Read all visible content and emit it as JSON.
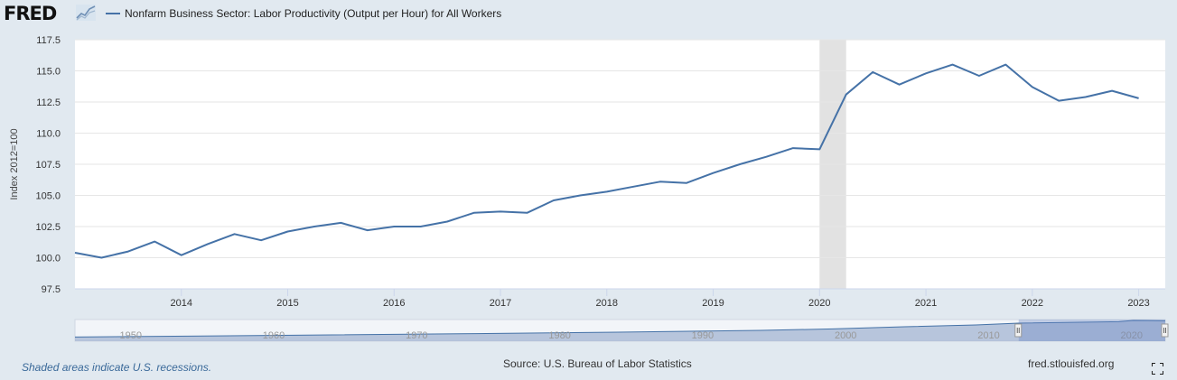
{
  "header": {
    "logo_text": "FRED",
    "logo_icon": "chart-trend-icon",
    "series_title": "Nonfarm Business Sector: Labor Productivity (Output per Hour) for All Workers"
  },
  "footer": {
    "recession_note": "Shaded areas indicate U.S. recessions.",
    "source": "Source: U.S. Bureau of Labor Statistics",
    "site": "fred.stlouisfed.org"
  },
  "colors": {
    "series": "#4572a7",
    "background": "#e1e9f0",
    "plot": "#ffffff",
    "recession": "#e2e2e2",
    "navigator": "#a7b9d4"
  },
  "chart_data": {
    "type": "line",
    "ylabel": "Index 2012=100",
    "ylim": [
      97.5,
      117.5
    ],
    "xlim": [
      2013.0,
      2023.25
    ],
    "yticks": [
      "97.5",
      "100.0",
      "102.5",
      "105.0",
      "107.5",
      "110.0",
      "112.5",
      "115.0",
      "117.5"
    ],
    "xticks": [
      "2014",
      "2015",
      "2016",
      "2017",
      "2018",
      "2019",
      "2020",
      "2021",
      "2022",
      "2023"
    ],
    "grid": true,
    "legend": "top-left",
    "recessions": [
      {
        "start": 2020.0,
        "end": 2020.25
      }
    ],
    "series": [
      {
        "name": "Nonfarm Business Sector: Labor Productivity (Output per Hour) for All Workers",
        "x": [
          2013.0,
          2013.25,
          2013.5,
          2013.75,
          2014.0,
          2014.25,
          2014.5,
          2014.75,
          2015.0,
          2015.25,
          2015.5,
          2015.75,
          2016.0,
          2016.25,
          2016.5,
          2016.75,
          2017.0,
          2017.25,
          2017.5,
          2017.75,
          2018.0,
          2018.25,
          2018.5,
          2018.75,
          2019.0,
          2019.25,
          2019.5,
          2019.75,
          2020.0,
          2020.25,
          2020.5,
          2020.75,
          2021.0,
          2021.25,
          2021.5,
          2021.75,
          2022.0,
          2022.25,
          2022.5,
          2022.75,
          2023.0
        ],
        "values": [
          100.4,
          100.0,
          100.5,
          101.3,
          100.2,
          101.1,
          101.9,
          101.4,
          102.1,
          102.5,
          102.8,
          102.2,
          102.5,
          102.5,
          102.9,
          103.6,
          103.7,
          103.6,
          104.6,
          105.0,
          105.3,
          105.7,
          106.1,
          106.0,
          106.8,
          107.5,
          108.1,
          108.8,
          108.7,
          113.1,
          114.9,
          113.9,
          114.8,
          115.5,
          114.6,
          115.5,
          113.7,
          112.6,
          112.9,
          113.4,
          112.8
        ]
      }
    ]
  },
  "navigator": {
    "labels": [
      "1950",
      "1960",
      "1970",
      "1980",
      "1990",
      "2000",
      "2010",
      "2020"
    ],
    "label_years": [
      1950,
      1960,
      1970,
      1980,
      1990,
      2000,
      2010,
      2020
    ],
    "range": [
      1947.0,
      2023.25
    ],
    "selected": [
      2013.0,
      2023.25
    ],
    "values": [
      {
        "x": 1947,
        "y": 23
      },
      {
        "x": 1955,
        "y": 28
      },
      {
        "x": 1965,
        "y": 35
      },
      {
        "x": 1975,
        "y": 42
      },
      {
        "x": 1985,
        "y": 50
      },
      {
        "x": 1995,
        "y": 60
      },
      {
        "x": 2000,
        "y": 68
      },
      {
        "x": 2005,
        "y": 80
      },
      {
        "x": 2010,
        "y": 90
      },
      {
        "x": 2013,
        "y": 100
      },
      {
        "x": 2020,
        "y": 108
      },
      {
        "x": 2021,
        "y": 115
      },
      {
        "x": 2023.25,
        "y": 113
      }
    ]
  }
}
